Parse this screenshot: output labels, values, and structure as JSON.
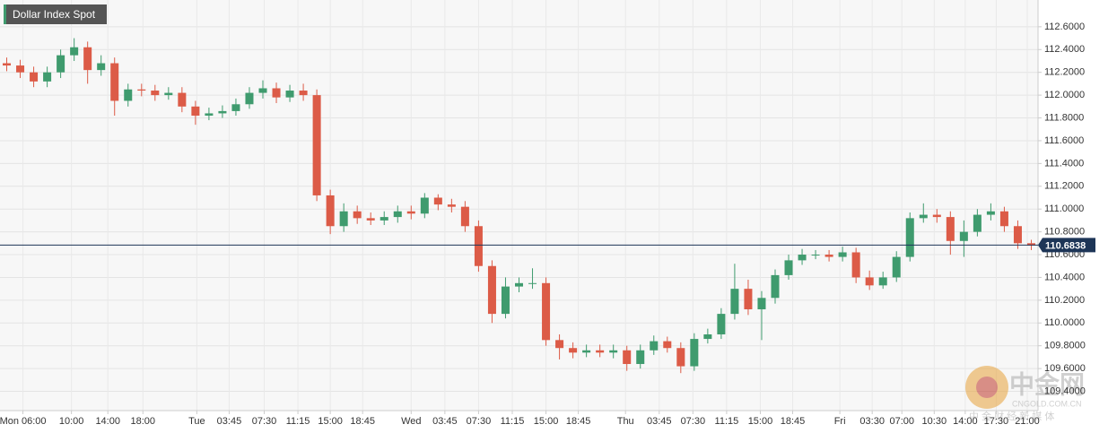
{
  "chart_data": {
    "type": "candlestick",
    "title": "Dollar Index Spot",
    "up_color": "#3f9b6e",
    "down_color": "#dc5b47",
    "grid": true,
    "ylim": [
      109.231,
      112.835
    ],
    "yticks": [
      {
        "value": 109.4,
        "label": "109.4000"
      },
      {
        "value": 109.6,
        "label": "109.6000"
      },
      {
        "value": 109.8,
        "label": "109.8000"
      },
      {
        "value": 110.0,
        "label": "110.0000"
      },
      {
        "value": 110.2,
        "label": "110.2000"
      },
      {
        "value": 110.4,
        "label": "110.4000"
      },
      {
        "value": 110.6,
        "label": "110.6000"
      },
      {
        "value": 110.8,
        "label": "110.8000"
      },
      {
        "value": 111.0,
        "label": "111.0000"
      },
      {
        "value": 111.2,
        "label": "111.2000"
      },
      {
        "value": 111.4,
        "label": "111.4000"
      },
      {
        "value": 111.6,
        "label": "111.6000"
      },
      {
        "value": 111.8,
        "label": "111.8000"
      },
      {
        "value": 112.0,
        "label": "112.0000"
      },
      {
        "value": 112.2,
        "label": "112.2000"
      },
      {
        "value": 112.4,
        "label": "112.4000"
      },
      {
        "value": 112.6,
        "label": "112.6000"
      }
    ],
    "xlim": [
      0,
      77
    ],
    "xticks": [
      {
        "value": 1.7,
        "label": "Mon 06:00"
      },
      {
        "value": 5.3,
        "label": "10:00"
      },
      {
        "value": 8,
        "label": "14:00"
      },
      {
        "value": 10.6,
        "label": "18:00"
      },
      {
        "value": 14.6,
        "label": "Tue"
      },
      {
        "value": 17,
        "label": "03:45"
      },
      {
        "value": 19.6,
        "label": "07:30"
      },
      {
        "value": 22.1,
        "label": "11:15"
      },
      {
        "value": 24.5,
        "label": "15:00"
      },
      {
        "value": 26.9,
        "label": "18:45"
      },
      {
        "value": 30.5,
        "label": "Wed"
      },
      {
        "value": 33,
        "label": "03:45"
      },
      {
        "value": 35.5,
        "label": "07:30"
      },
      {
        "value": 38,
        "label": "11:15"
      },
      {
        "value": 40.5,
        "label": "15:00"
      },
      {
        "value": 42.9,
        "label": "18:45"
      },
      {
        "value": 46.4,
        "label": "Thu"
      },
      {
        "value": 48.9,
        "label": "03:45"
      },
      {
        "value": 51.4,
        "label": "07:30"
      },
      {
        "value": 53.9,
        "label": "11:15"
      },
      {
        "value": 56.4,
        "label": "15:00"
      },
      {
        "value": 58.8,
        "label": "18:45"
      },
      {
        "value": 62.3,
        "label": "Fri"
      },
      {
        "value": 64.7,
        "label": "03:30"
      },
      {
        "value": 66.9,
        "label": "07:00"
      },
      {
        "value": 69.3,
        "label": "10:30"
      },
      {
        "value": 71.6,
        "label": "14:00"
      },
      {
        "value": 73.9,
        "label": "17:30"
      },
      {
        "value": 76.2,
        "label": "21:00"
      }
    ],
    "last_price": 110.6838,
    "last_price_color": "#1d3557",
    "open": [
      112.28,
      112.26,
      112.2,
      112.12,
      112.2,
      112.35,
      112.42,
      112.22,
      112.28,
      111.95,
      112.05,
      112.04,
      112.0,
      112.02,
      111.9,
      111.82,
      111.84,
      111.86,
      111.92,
      112.02,
      112.06,
      111.98,
      112.04,
      112.0,
      111.12,
      110.85,
      110.98,
      110.92,
      110.9,
      110.93,
      110.98,
      110.96,
      111.1,
      111.04,
      111.02,
      110.85,
      110.5,
      110.08,
      110.32,
      110.35,
      110.35,
      109.85,
      109.78,
      109.74,
      109.76,
      109.74,
      109.76,
      109.64,
      109.76,
      109.84,
      109.78,
      109.62,
      109.86,
      109.9,
      110.08,
      110.3,
      110.12,
      110.22,
      110.42,
      110.55,
      110.6,
      110.6,
      110.58,
      110.62,
      110.4,
      110.33,
      110.4,
      110.58,
      110.92,
      110.95,
      110.93,
      110.72,
      110.8,
      110.95,
      110.98,
      110.85,
      110.7
    ],
    "high": [
      112.33,
      112.31,
      112.25,
      112.25,
      112.4,
      112.5,
      112.47,
      112.35,
      112.33,
      112.1,
      112.1,
      112.09,
      112.07,
      112.07,
      111.95,
      111.89,
      111.91,
      111.97,
      112.07,
      112.13,
      112.11,
      112.09,
      112.1,
      112.05,
      111.17,
      111.05,
      111.03,
      110.97,
      110.98,
      111.03,
      111.03,
      111.14,
      111.13,
      111.09,
      111.07,
      110.9,
      110.55,
      110.4,
      110.4,
      110.48,
      110.4,
      109.9,
      109.83,
      109.81,
      109.81,
      109.81,
      109.8,
      109.81,
      109.89,
      109.88,
      109.83,
      109.91,
      109.95,
      110.13,
      110.52,
      110.38,
      110.28,
      110.47,
      110.6,
      110.65,
      110.64,
      110.64,
      110.67,
      110.66,
      110.46,
      110.45,
      110.63,
      110.97,
      111.05,
      111.0,
      110.98,
      110.9,
      111.0,
      111.05,
      111.02,
      110.9,
      110.73
    ],
    "low": [
      112.21,
      112.15,
      112.07,
      112.07,
      112.15,
      112.3,
      112.1,
      112.17,
      111.82,
      111.9,
      111.99,
      111.95,
      111.96,
      111.85,
      111.74,
      111.78,
      111.8,
      111.82,
      111.88,
      111.97,
      111.93,
      111.94,
      111.95,
      111.07,
      110.78,
      110.8,
      110.87,
      110.86,
      110.86,
      110.88,
      110.91,
      110.92,
      110.99,
      110.97,
      110.8,
      110.45,
      110.0,
      110.04,
      110.27,
      110.3,
      109.8,
      109.68,
      109.69,
      109.7,
      109.7,
      109.69,
      109.58,
      109.6,
      109.72,
      109.74,
      109.56,
      109.58,
      109.82,
      109.86,
      110.03,
      110.07,
      109.85,
      110.17,
      110.38,
      110.51,
      110.56,
      110.54,
      110.54,
      110.35,
      110.29,
      110.3,
      110.36,
      110.54,
      110.88,
      110.88,
      110.6,
      110.58,
      110.76,
      110.9,
      110.8,
      110.65,
      110.64
    ],
    "close": [
      112.26,
      112.2,
      112.12,
      112.2,
      112.35,
      112.42,
      112.22,
      112.28,
      111.95,
      112.05,
      112.04,
      112.0,
      112.02,
      111.9,
      111.82,
      111.84,
      111.86,
      111.92,
      112.02,
      112.06,
      111.98,
      112.04,
      112.0,
      111.12,
      110.85,
      110.98,
      110.92,
      110.9,
      110.93,
      110.98,
      110.96,
      111.1,
      111.04,
      111.02,
      110.85,
      110.5,
      110.08,
      110.32,
      110.35,
      110.35,
      109.85,
      109.78,
      109.74,
      109.76,
      109.74,
      109.76,
      109.64,
      109.76,
      109.84,
      109.78,
      109.62,
      109.86,
      109.9,
      110.08,
      110.3,
      110.12,
      110.22,
      110.42,
      110.55,
      110.6,
      110.6,
      110.58,
      110.62,
      110.4,
      110.33,
      110.4,
      110.58,
      110.92,
      110.95,
      110.93,
      110.72,
      110.8,
      110.95,
      110.98,
      110.85,
      110.7,
      110.68
    ]
  },
  "watermark": {
    "brand": "中金网",
    "site": "CNGOLD.COM.CN",
    "slogan": "中 金 财 经 新 媒 体"
  }
}
